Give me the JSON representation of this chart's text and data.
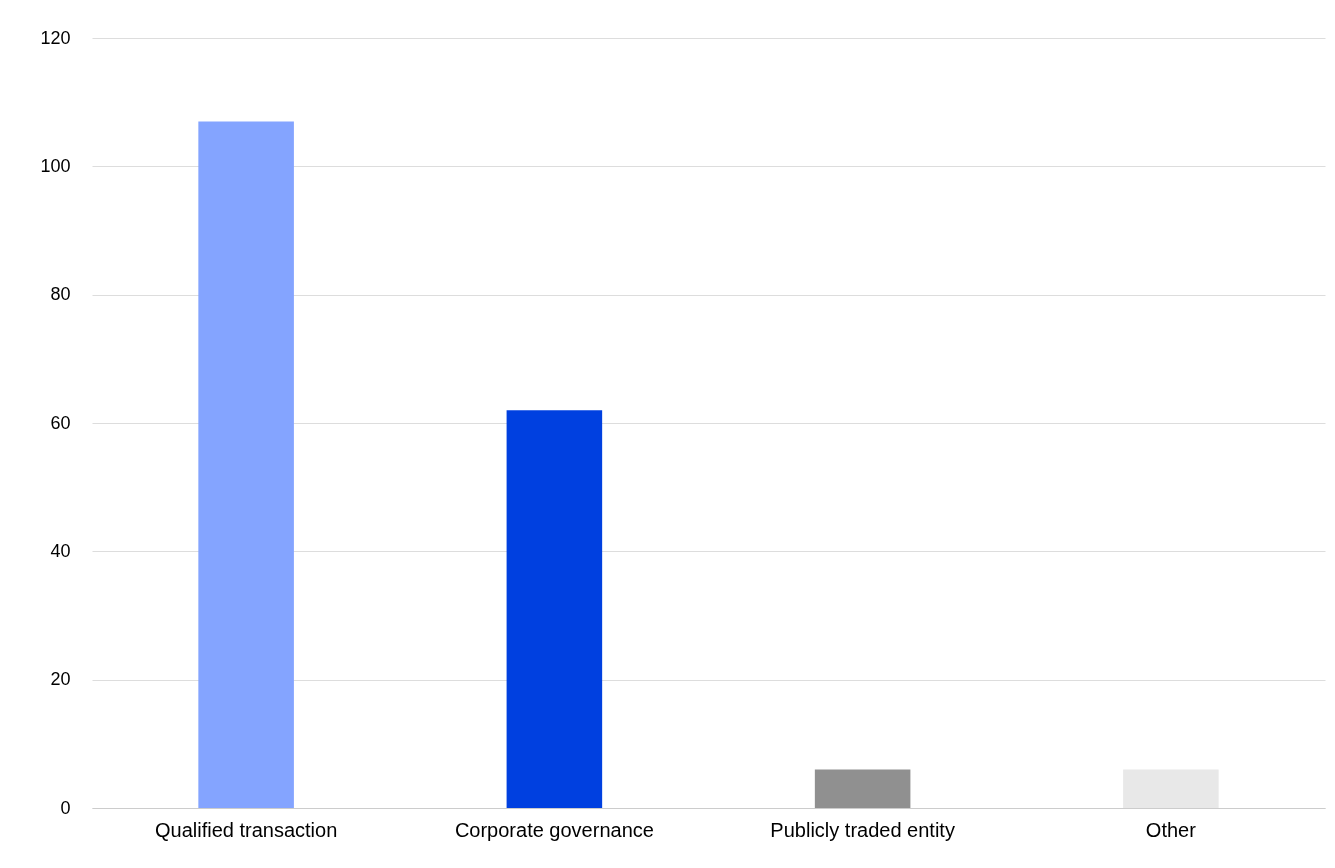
{
  "chart_data": {
    "type": "bar",
    "categories": [
      "Qualified transaction",
      "Corporate governance",
      "Publicly traded entity",
      "Other"
    ],
    "values": [
      107,
      62,
      6,
      6
    ],
    "colors": [
      "#84a4ff",
      "#0040e0",
      "#909090",
      "#e8e8e8"
    ],
    "ylim": [
      0,
      120
    ],
    "yticks": [
      0,
      20,
      40,
      60,
      80,
      100,
      120
    ],
    "grid": "y",
    "legend": false
  }
}
